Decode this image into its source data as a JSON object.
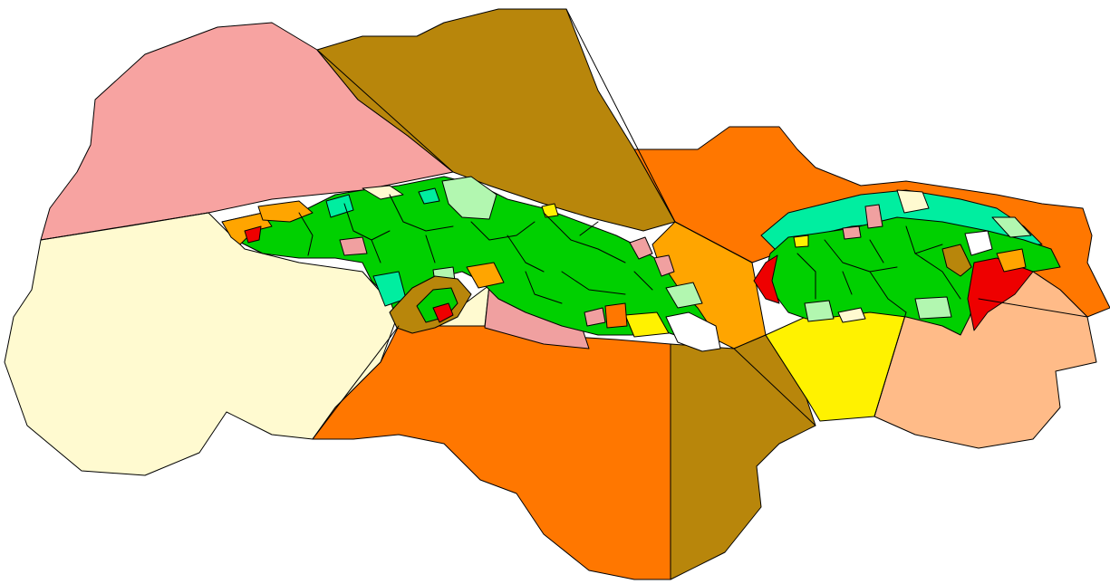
{
  "map": {
    "colors": {
      "background": "#ffffff",
      "pink": "#f7a3a1",
      "cream": "#fffad0",
      "brown": "#b8860b",
      "orange": "#ff7700",
      "amber": "#ffa500",
      "yellow": "#fff200",
      "peach": "#ffbb88",
      "green": "#00d000",
      "mint": "#b2f7b0",
      "aqua": "#00eea0",
      "red": "#ee0000",
      "rose": "#f0a0a0",
      "white": "#ffffff",
      "outline": "#000000"
    }
  }
}
